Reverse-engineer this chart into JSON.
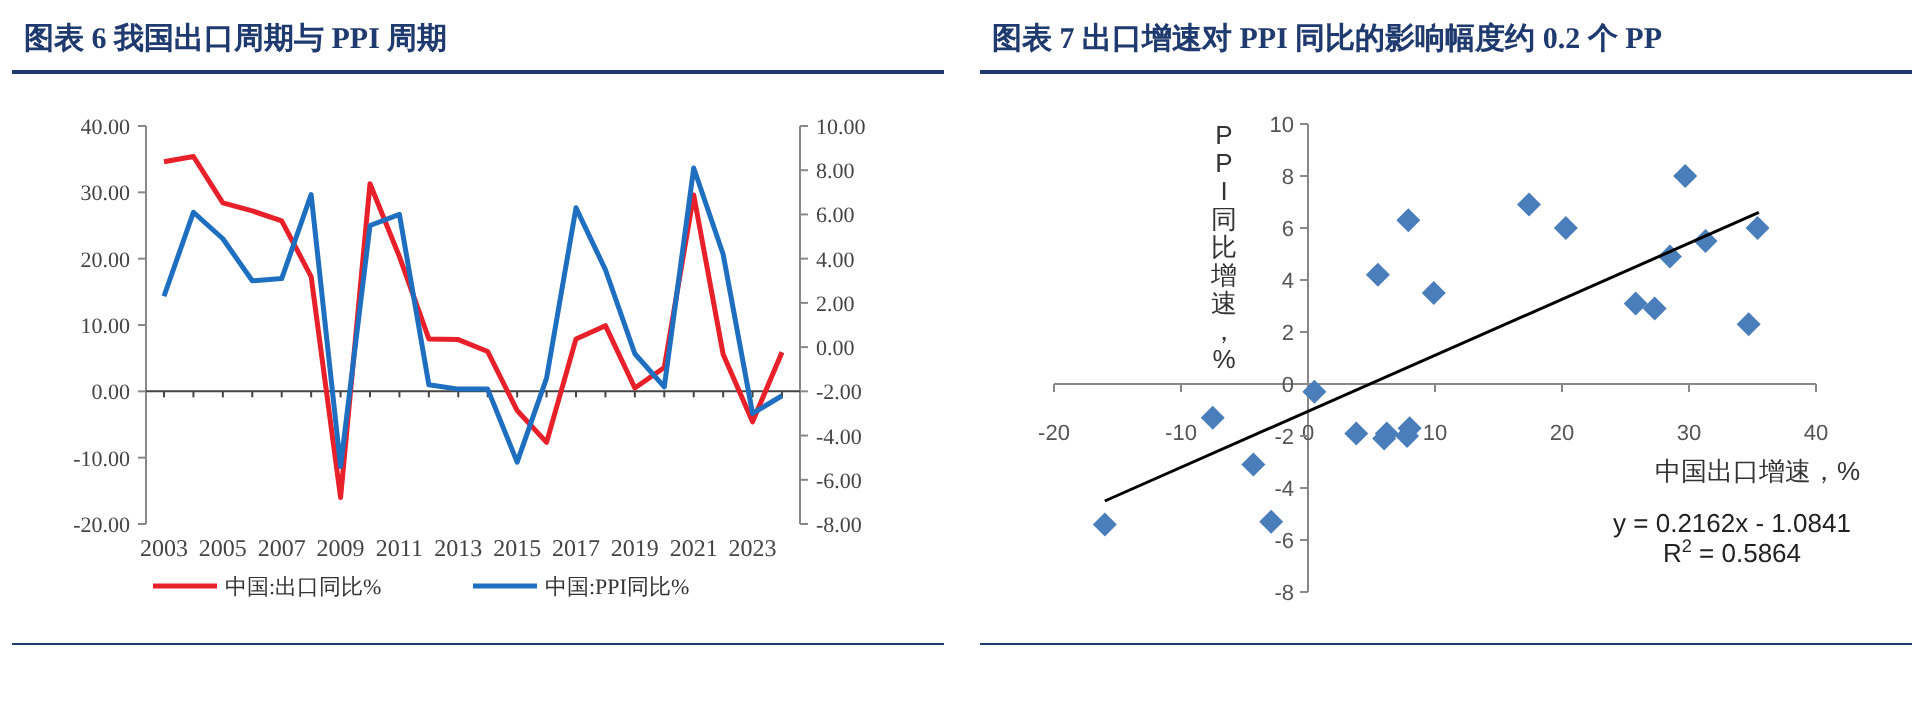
{
  "chart_data": [
    {
      "type": "line",
      "title": "图表 6   我国出口周期与 PPI 周期",
      "categories": [
        "2003",
        null,
        "2005",
        null,
        "2007",
        null,
        "2009",
        null,
        "2011",
        null,
        "2013",
        null,
        "2015",
        null,
        "2017",
        null,
        "2019",
        null,
        "2021",
        null,
        "2023",
        null
      ],
      "series": [
        {
          "name": "中国:出口同比%",
          "color": "#e8202a",
          "values": [
            34.6,
            35.4,
            28.4,
            27.2,
            25.7,
            17.3,
            -16.0,
            31.3,
            20.3,
            7.9,
            7.8,
            6.0,
            -2.9,
            -7.7,
            7.9,
            9.9,
            0.5,
            3.6,
            29.6,
            5.6,
            -4.6,
            5.9
          ]
        },
        {
          "name": "中国:PPI同比%",
          "color": "#1f6fc0",
          "axis": "y2",
          "values": [
            2.3,
            6.1,
            4.9,
            3.0,
            3.1,
            6.9,
            -5.4,
            5.5,
            6.0,
            -1.7,
            -1.9,
            -1.9,
            -5.2,
            -1.4,
            6.3,
            3.5,
            -0.3,
            -1.8,
            8.1,
            4.2,
            -3.0,
            -2.2
          ]
        }
      ],
      "ylim": [
        -20,
        40
      ],
      "yticks": [
        {
          "value": -20,
          "label": "-20.00"
        },
        {
          "value": -10,
          "label": "-10.00"
        },
        {
          "value": 0,
          "label": "0.00"
        },
        {
          "value": 10,
          "label": "10.00"
        },
        {
          "value": 20,
          "label": "20.00"
        },
        {
          "value": 30,
          "label": "30.00"
        },
        {
          "value": 40,
          "label": "40.00"
        }
      ],
      "y2lim": [
        -8,
        10
      ],
      "y2ticks": [
        {
          "value": -8,
          "label": "-8.00"
        },
        {
          "value": -6,
          "label": "-6.00"
        },
        {
          "value": -4,
          "label": "-4.00"
        },
        {
          "value": -2,
          "label": "-2.00"
        },
        {
          "value": 0,
          "label": "0.00"
        },
        {
          "value": 2,
          "label": "2.00"
        },
        {
          "value": 4,
          "label": "4.00"
        },
        {
          "value": 6,
          "label": "6.00"
        },
        {
          "value": 8,
          "label": "8.00"
        },
        {
          "value": 10,
          "label": "10.00"
        }
      ],
      "legend": "bottom",
      "marker": "none"
    },
    {
      "type": "scatter",
      "title": "图表 7   出口增速对 PPI 同比的影响幅度约 0.2 个 PP",
      "xlabel": "中国出口增速，%",
      "ylabel": "PPI同比增速，%",
      "marker": "diamond",
      "series": [
        {
          "color": "#4a7ebb",
          "x": [
            -16.0,
            -7.5,
            -4.3,
            -2.9,
            0.5,
            3.8,
            6.0,
            6.2,
            7.8,
            8.0,
            5.5,
            7.9,
            9.9,
            17.4,
            20.3,
            25.8,
            27.3,
            28.5,
            29.7,
            31.3,
            34.7,
            35.4
          ],
          "values": [
            -5.4,
            -1.3,
            -3.1,
            -5.3,
            -0.3,
            -1.9,
            -2.1,
            -1.9,
            -2.0,
            -1.7,
            4.2,
            6.3,
            3.5,
            6.9,
            6.0,
            3.1,
            2.9,
            4.9,
            8.0,
            5.5,
            2.3,
            6.0
          ]
        },
        {
          "type": "line",
          "color": "#000000",
          "marker": "none",
          "x": [
            -16.0,
            35.5
          ],
          "values": [
            -4.5,
            6.6
          ]
        }
      ],
      "xlim": [
        -20,
        40
      ],
      "xticks": [
        -20,
        -10,
        0,
        10,
        20,
        30,
        40
      ],
      "ylim": [
        -8,
        10
      ],
      "yticks": [
        -8,
        -6,
        -4,
        -2,
        0,
        2,
        4,
        6,
        8,
        10
      ],
      "annotations": [
        "y = 0.2162x - 1.0841",
        "R$^{2}$ = 0.5864"
      ]
    }
  ]
}
